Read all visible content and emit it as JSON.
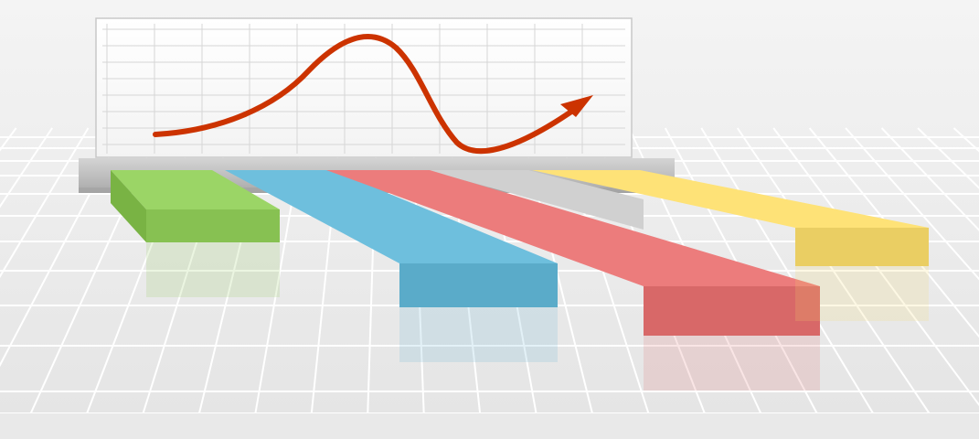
{
  "scene": {
    "colors": {
      "background_top": "#f4f4f4",
      "background_bottom": "#e4e4e4",
      "floor_grid": "#ffffff",
      "board_face": "#ffffff",
      "board_grid": "#d6d6d6",
      "board_border": "#c8c8c8",
      "board_stand": "#b9b9b9",
      "curve_arrow": "#cc3300"
    },
    "bars": [
      {
        "name": "green",
        "color": "#8fc95a"
      },
      {
        "name": "blue",
        "color": "#62b3d1"
      },
      {
        "name": "red",
        "color": "#e07070"
      },
      {
        "name": "gray",
        "color": "#c4c4c4"
      },
      {
        "name": "yellow",
        "color": "#f2d66b"
      }
    ]
  }
}
